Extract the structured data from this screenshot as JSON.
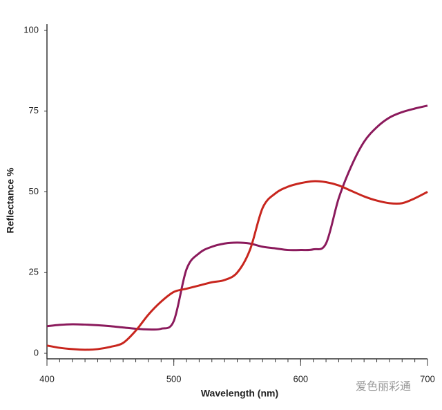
{
  "chart_data": {
    "type": "line",
    "x_label": "Wavelength (nm)",
    "y_label": "Reflectance %",
    "annotation": "爱色丽彩通",
    "x": [
      400,
      410,
      420,
      430,
      440,
      450,
      460,
      470,
      480,
      490,
      500,
      510,
      520,
      530,
      540,
      550,
      560,
      570,
      580,
      590,
      600,
      610,
      620,
      630,
      640,
      650,
      660,
      670,
      680,
      690,
      700
    ],
    "series": [
      {
        "color": "#8b1a5c",
        "values": [
          8.4,
          8.8,
          9,
          8.9,
          8.7,
          8.4,
          8,
          7.6,
          7.4,
          7.6,
          10,
          26,
          31,
          33,
          34,
          34.3,
          34,
          33,
          32.5,
          32,
          32,
          32.2,
          34,
          48,
          58,
          65.5,
          70,
          73,
          74.7,
          75.8,
          76.7
        ]
      },
      {
        "color": "#c8261e",
        "values": [
          2.4,
          1.7,
          1.3,
          1.1,
          1.3,
          2,
          3.2,
          7,
          12,
          16,
          19,
          20,
          21,
          22,
          22.7,
          25,
          32,
          45,
          49.5,
          51.6,
          52.7,
          53.3,
          53,
          52,
          50.3,
          48.6,
          47.3,
          46.5,
          46.5,
          48,
          50
        ]
      }
    ],
    "xlim": [
      400,
      700
    ],
    "xticks": [
      400,
      500,
      600,
      700
    ],
    "ylim": [
      0,
      100
    ],
    "yticks": [
      0,
      25,
      50,
      75,
      100
    ]
  }
}
